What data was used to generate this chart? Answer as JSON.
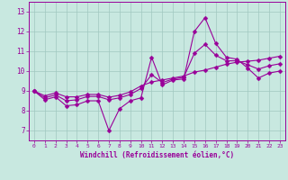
{
  "title": "",
  "xlabel": "Windchill (Refroidissement éolien,°C)",
  "xlim": [
    -0.5,
    23.5
  ],
  "ylim": [
    6.5,
    13.5
  ],
  "xticks": [
    0,
    1,
    2,
    3,
    4,
    5,
    6,
    7,
    8,
    9,
    10,
    11,
    12,
    13,
    14,
    15,
    16,
    17,
    18,
    19,
    20,
    21,
    22,
    23
  ],
  "yticks": [
    7,
    8,
    9,
    10,
    11,
    12,
    13
  ],
  "bg_color": "#c8e8e0",
  "line_color": "#990099",
  "grid_color": "#a0c8c0",
  "line1_x": [
    0,
    1,
    2,
    3,
    4,
    5,
    6,
    7,
    8,
    9,
    10,
    11,
    12,
    13,
    14,
    15,
    16,
    17,
    18,
    19,
    20,
    21,
    22,
    23
  ],
  "line1_y": [
    9.0,
    8.55,
    8.7,
    8.25,
    8.3,
    8.5,
    8.5,
    7.0,
    8.1,
    8.5,
    8.65,
    10.7,
    9.3,
    9.55,
    9.6,
    12.0,
    12.7,
    11.4,
    10.7,
    10.6,
    10.15,
    9.65,
    9.9,
    10.0
  ],
  "line2_x": [
    0,
    1,
    2,
    3,
    4,
    5,
    6,
    7,
    8,
    9,
    10,
    11,
    12,
    13,
    14,
    15,
    16,
    17,
    18,
    19,
    20,
    21,
    22,
    23
  ],
  "line2_y": [
    9.0,
    8.75,
    8.9,
    8.7,
    8.7,
    8.82,
    8.82,
    8.68,
    8.78,
    8.95,
    9.25,
    9.45,
    9.55,
    9.65,
    9.75,
    9.95,
    10.05,
    10.2,
    10.35,
    10.45,
    10.5,
    10.55,
    10.65,
    10.75
  ],
  "line3_x": [
    0,
    1,
    2,
    3,
    4,
    5,
    6,
    7,
    8,
    9,
    10,
    11,
    12,
    13,
    14,
    15,
    16,
    17,
    18,
    19,
    20,
    21,
    22,
    23
  ],
  "line3_y": [
    9.0,
    8.65,
    8.8,
    8.5,
    8.55,
    8.72,
    8.72,
    8.55,
    8.65,
    8.82,
    9.12,
    9.82,
    9.42,
    9.6,
    9.68,
    10.9,
    11.35,
    10.8,
    10.52,
    10.52,
    10.32,
    10.1,
    10.27,
    10.37
  ],
  "marker": "D",
  "markersize": 2.5,
  "linewidth": 0.8
}
